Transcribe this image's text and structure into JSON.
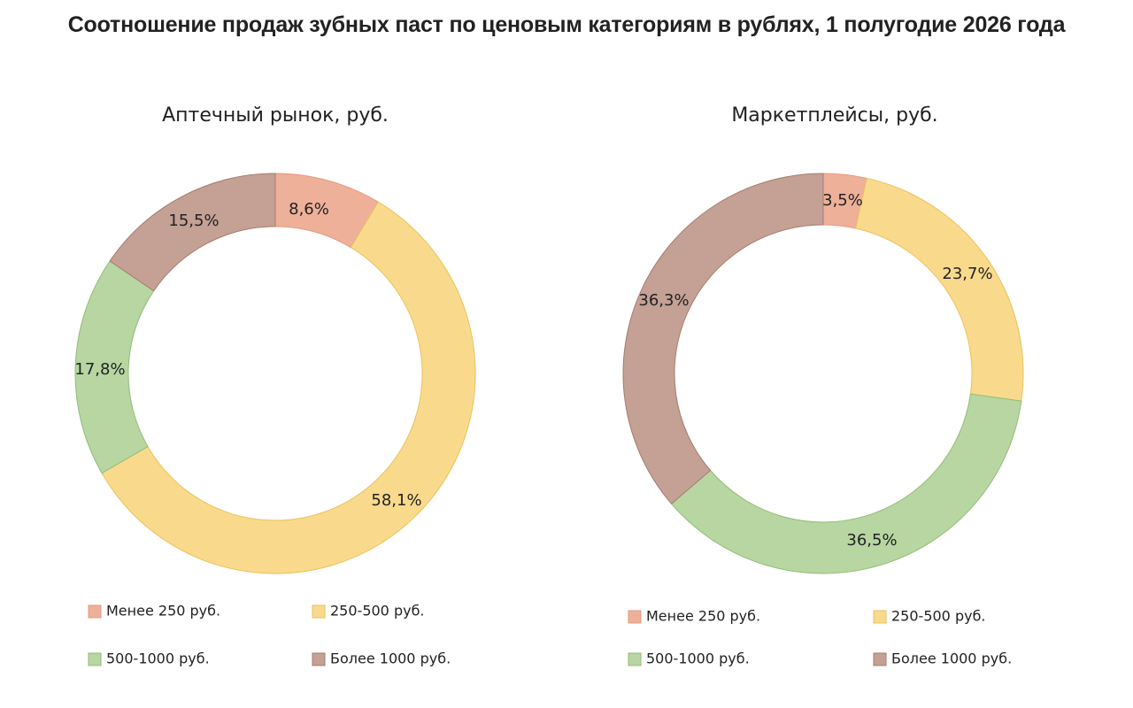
{
  "title": "Соотношение продаж зубных паст по ценовым категориям в рублях, 1 полугодие 2026 года",
  "colors": {
    "less_250": "#eeb099",
    "r250_500": "#f9da8d",
    "r500_1000": "#b7d6a1",
    "more_1000": "#c5a095"
  },
  "chart_data": [
    {
      "type": "pie",
      "variant": "donut",
      "title": "Аптечный рынок, руб.",
      "categories": [
        "Менее 250 руб.",
        "250-500 руб.",
        "500-1000 руб.",
        "Более 1000 руб."
      ],
      "values": [
        8.6,
        58.1,
        17.8,
        15.5
      ],
      "labels": [
        "8,6%",
        "58,1%",
        "17,8%",
        "15,5%"
      ],
      "legend": "bottom"
    },
    {
      "type": "pie",
      "variant": "donut",
      "title": "Маркетплейсы, руб.",
      "categories": [
        "Менее 250 руб.",
        "250-500 руб.",
        "500-1000 руб.",
        "Более 1000 руб."
      ],
      "values": [
        3.5,
        23.7,
        36.5,
        36.3
      ],
      "labels": [
        "3,5%",
        "23,7%",
        "36,5%",
        "36,3%"
      ],
      "legend": "bottom"
    }
  ]
}
